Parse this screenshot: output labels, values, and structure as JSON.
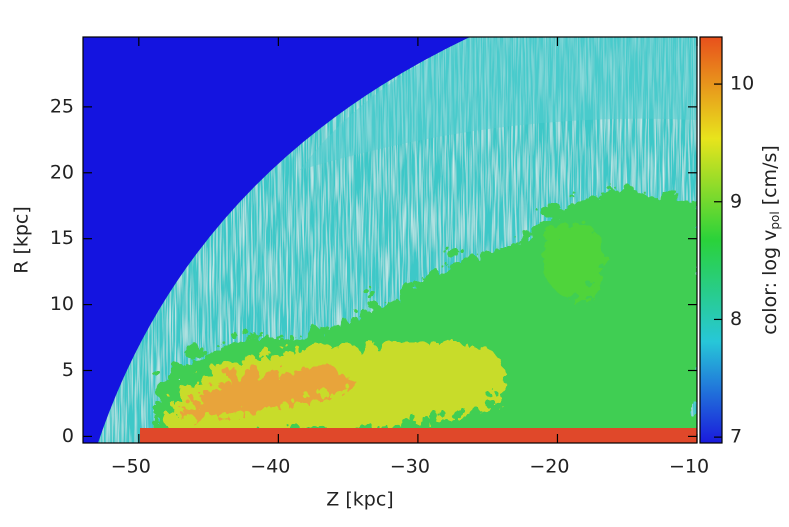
{
  "chart_data": {
    "type": "image",
    "xlabel": "Z  [kpc]",
    "ylabel": "R  [kpc]",
    "xlim": [
      -54,
      -10
    ],
    "xticks": [
      {
        "value": -50,
        "label": "−50"
      },
      {
        "value": -40,
        "label": "−40"
      },
      {
        "value": -30,
        "label": "−30"
      },
      {
        "value": -20,
        "label": "−20"
      },
      {
        "value": -10,
        "label": "−10"
      }
    ],
    "ylim": [
      -0.5,
      30.3
    ],
    "yticks": [
      0,
      5,
      10,
      15,
      20,
      25
    ],
    "colorbar": {
      "label_prefix": "color: log v",
      "label_subscript": "pol",
      "label_suffix": " [cm/s]",
      "lim": [
        6.95,
        10.4
      ],
      "ticks": [
        7,
        8,
        9,
        10
      ],
      "colors": [
        "#1a1adc",
        "#27c7d8",
        "#2ad23a",
        "#e8e41c",
        "#e8501c"
      ]
    }
  }
}
